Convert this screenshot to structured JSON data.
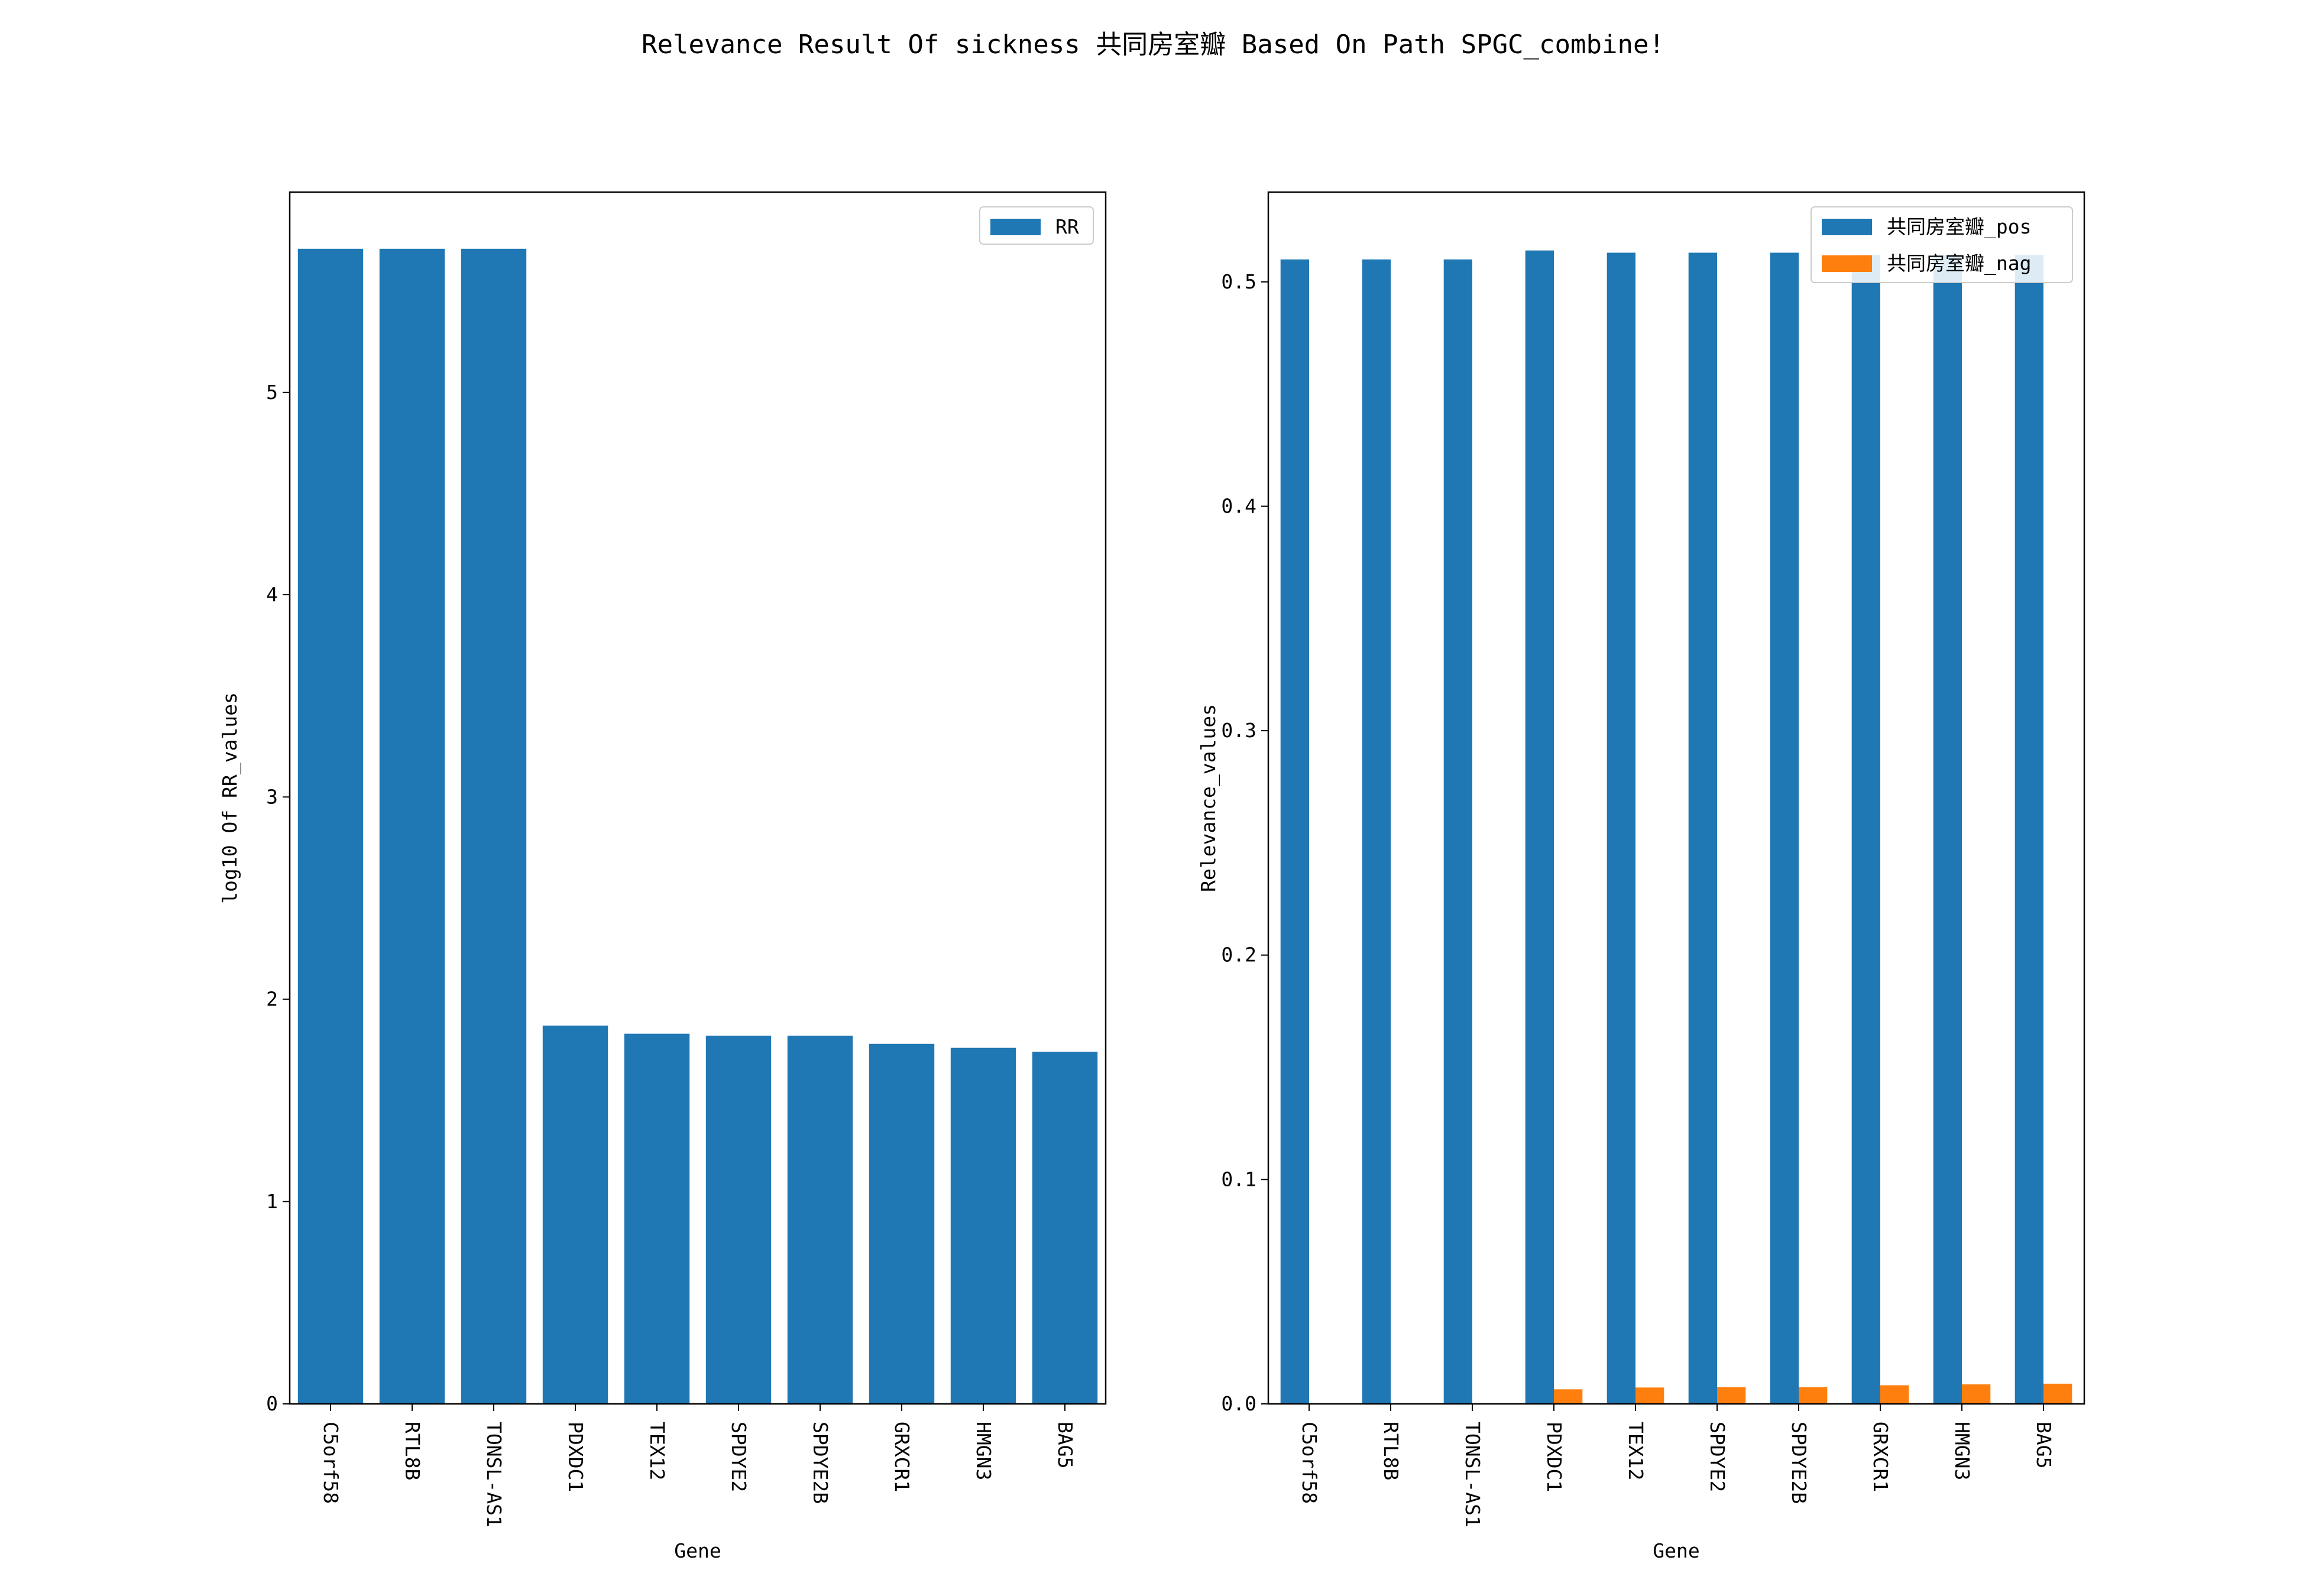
{
  "figure": {
    "suptitle": "Relevance Result Of sickness 共同房室瓣 Based On Path SPGC_combine!"
  },
  "chart_data": [
    {
      "type": "bar",
      "title": "",
      "xlabel": "Gene",
      "ylabel": "log10 Of RR_values",
      "categories": [
        "C5orf58",
        "RTL8B",
        "TONSL-AS1",
        "PDXDC1",
        "TEX12",
        "SPDYE2",
        "SPDYE2B",
        "GRXCR1",
        "HMGN3",
        "BAG5"
      ],
      "series": [
        {
          "name": "RR",
          "color": "#1f77b4",
          "values": [
            5.71,
            5.71,
            5.71,
            1.87,
            1.83,
            1.82,
            1.82,
            1.78,
            1.76,
            1.74
          ]
        }
      ],
      "ylim": [
        0,
        5.99
      ],
      "yticks": [
        0,
        1,
        2,
        3,
        4,
        5
      ],
      "ytick_labels": [
        "0",
        "1",
        "2",
        "3",
        "4",
        "5"
      ],
      "legend_position": "top-right",
      "grid": false
    },
    {
      "type": "bar",
      "title": "",
      "xlabel": "Gene",
      "ylabel": "Relevance_values",
      "categories": [
        "C5orf58",
        "RTL8B",
        "TONSL-AS1",
        "PDXDC1",
        "TEX12",
        "SPDYE2",
        "SPDYE2B",
        "GRXCR1",
        "HMGN3",
        "BAG5"
      ],
      "series": [
        {
          "name": "共同房室瓣_pos",
          "color": "#1f77b4",
          "values": [
            0.51,
            0.51,
            0.51,
            0.514,
            0.513,
            0.513,
            0.513,
            0.512,
            0.512,
            0.512
          ]
        },
        {
          "name": "共同房室瓣_nag",
          "color": "#ff7f0e",
          "values": [
            0,
            0,
            0,
            0.0065,
            0.0073,
            0.0075,
            0.0075,
            0.0083,
            0.0087,
            0.009
          ]
        }
      ],
      "ylim": [
        0,
        0.54
      ],
      "yticks": [
        0,
        0.1,
        0.2,
        0.3,
        0.4,
        0.5
      ],
      "ytick_labels": [
        "0.0",
        "0.1",
        "0.2",
        "0.3",
        "0.4",
        "0.5"
      ],
      "legend_position": "top-right",
      "grid": false
    }
  ]
}
